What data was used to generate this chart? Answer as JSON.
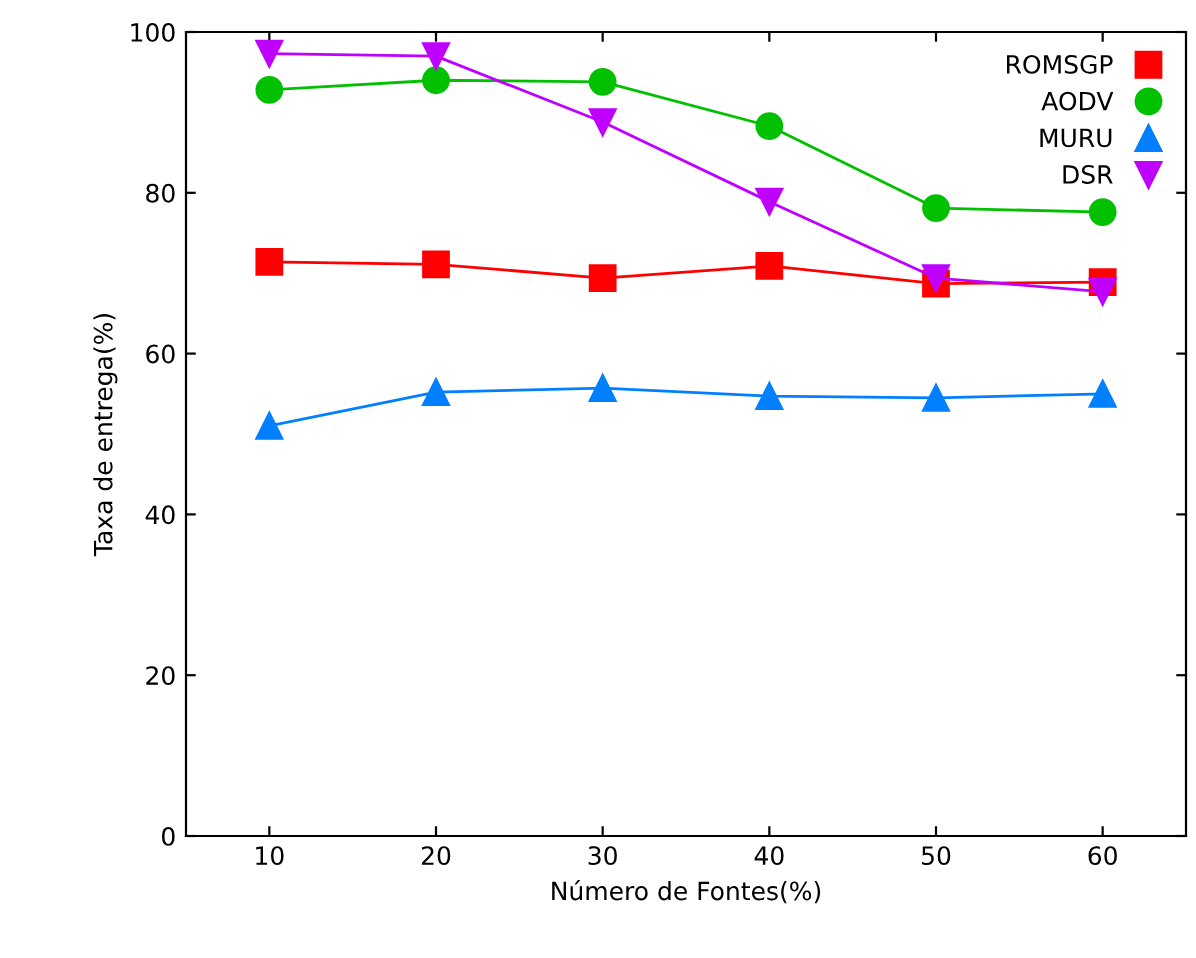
{
  "chart_data": {
    "type": "line",
    "xlabel": "Número de Fontes(%)",
    "ylabel": "Taxa de entrega(%)",
    "x": [
      10,
      20,
      30,
      40,
      50,
      60
    ],
    "xlim": [
      5,
      65
    ],
    "xticks": [
      10,
      20,
      30,
      40,
      50,
      60
    ],
    "ylim": [
      0,
      100
    ],
    "yticks": [
      0,
      20,
      40,
      60,
      80,
      100
    ],
    "grid": false,
    "legend": "top right",
    "series": [
      {
        "name": "ROMSGP",
        "color": "#ff0000",
        "marker": "square",
        "values": [
          71.4,
          71.1,
          69.4,
          70.9,
          68.7,
          68.9
        ]
      },
      {
        "name": "AODV",
        "color": "#00c000",
        "marker": "circle",
        "values": [
          92.8,
          94.0,
          93.8,
          88.3,
          78.1,
          77.6
        ]
      },
      {
        "name": "MURU",
        "color": "#0080ff",
        "marker": "triangle",
        "values": [
          51.0,
          55.2,
          55.7,
          54.7,
          54.5,
          55.0
        ]
      },
      {
        "name": "DSR",
        "color": "#c000ff",
        "marker": "triangle_down",
        "values": [
          97.3,
          97.0,
          88.8,
          78.9,
          69.4,
          67.7
        ]
      }
    ]
  }
}
